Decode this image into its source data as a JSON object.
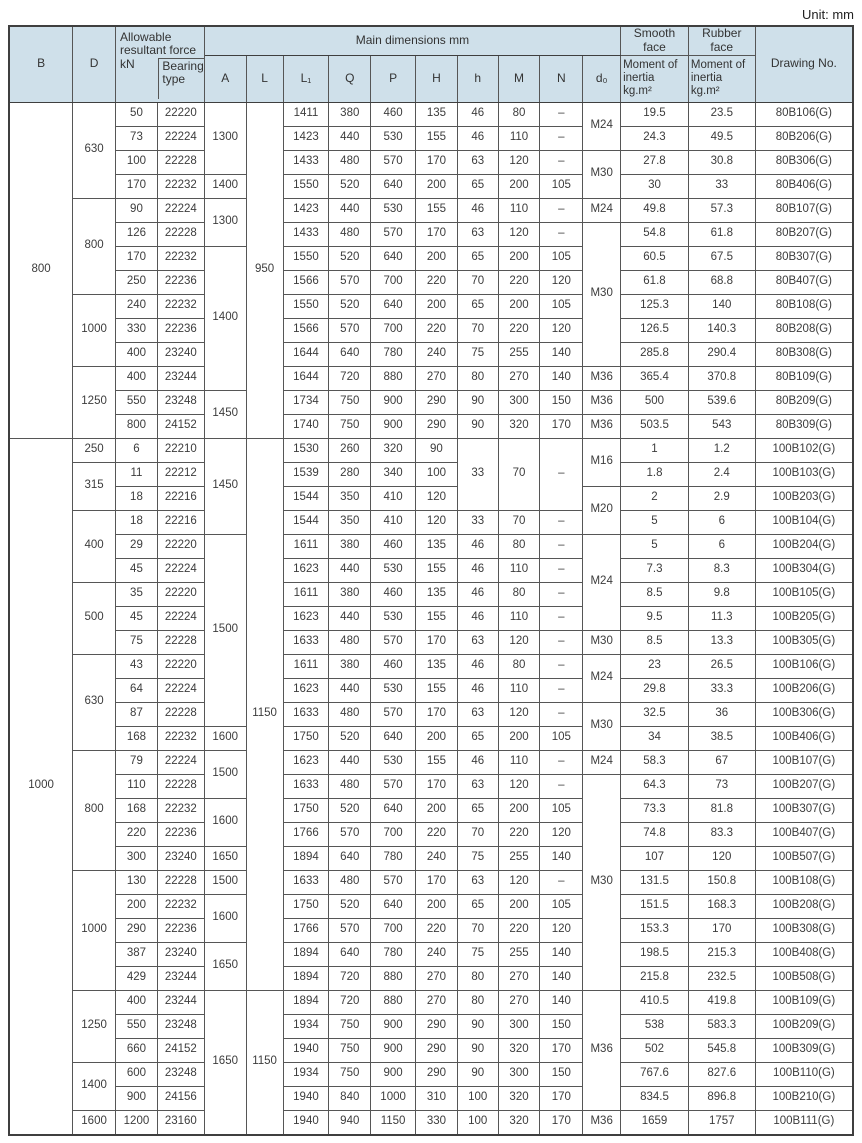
{
  "meta": {
    "unit_label": "Unit: mm"
  },
  "header": {
    "b": "B",
    "d": "D",
    "force_group": "Allowable resultant force",
    "kn": "kN",
    "bearing": "Bearing type",
    "main_dims": "Main dimensions mm",
    "dims": [
      "A",
      "L",
      "L₁",
      "Q",
      "P",
      "H",
      "h",
      "M",
      "N",
      "d₀"
    ],
    "smooth_face": "Smooth face",
    "rubber_face": "Rubber face",
    "smooth_moi": "Moment of inertia kg.m²",
    "rubber_moi": "Moment of inertia kg.m²",
    "drawing": "Drawing No."
  },
  "columns_order": [
    "B",
    "D",
    "kN",
    "Bearing type",
    "A",
    "L",
    "L1",
    "Q",
    "P",
    "H",
    "h",
    "M",
    "N",
    "d0",
    "Smooth face moment of inertia",
    "Rubber face moment of inertia",
    "Drawing No."
  ],
  "sections": [
    {
      "b": "800",
      "rows": [
        [
          [
            "800",
            14
          ],
          [
            "630",
            4
          ],
          "50",
          "22220",
          [
            "1300",
            3
          ],
          [
            "950",
            14
          ],
          "1411",
          "380",
          "460",
          "135",
          "46",
          "80",
          "–",
          [
            "M24",
            2
          ],
          "19.5",
          "23.5",
          "80B106(G)"
        ],
        [
          "73",
          "22224",
          "1423",
          "440",
          "530",
          "155",
          "46",
          "110",
          "–",
          "24.3",
          "49.5",
          "80B206(G)"
        ],
        [
          "100",
          "22228",
          "1433",
          "480",
          "570",
          "170",
          "63",
          "120",
          "–",
          [
            "M30",
            2
          ],
          "27.8",
          "30.8",
          "80B306(G)"
        ],
        [
          "170",
          "22232",
          "1400",
          "1550",
          "520",
          "640",
          "200",
          "65",
          "200",
          "105",
          "30",
          "33",
          "80B406(G)"
        ],
        [
          [
            "800",
            4
          ],
          "90",
          "22224",
          [
            "1300",
            2
          ],
          "1423",
          "440",
          "530",
          "155",
          "46",
          "110",
          "–",
          "M24",
          "49.8",
          "57.3",
          "80B107(G)"
        ],
        [
          "126",
          "22228",
          "1433",
          "480",
          "570",
          "170",
          "63",
          "120",
          "–",
          [
            "M30",
            6
          ],
          "54.8",
          "61.8",
          "80B207(G)"
        ],
        [
          "170",
          "22232",
          [
            "1400",
            6
          ],
          "1550",
          "520",
          "640",
          "200",
          "65",
          "200",
          "105",
          "60.5",
          "67.5",
          "80B307(G)"
        ],
        [
          "250",
          "22236",
          "1566",
          "570",
          "700",
          "220",
          "70",
          "220",
          "120",
          "61.8",
          "68.8",
          "80B407(G)"
        ],
        [
          [
            "1000",
            3
          ],
          "240",
          "22232",
          "1550",
          "520",
          "640",
          "200",
          "65",
          "200",
          "105",
          "125.3",
          "140",
          "80B108(G)"
        ],
        [
          "330",
          "22236",
          "1566",
          "570",
          "700",
          "220",
          "70",
          "220",
          "120",
          "126.5",
          "140.3",
          "80B208(G)"
        ],
        [
          "400",
          "23240",
          "1644",
          "640",
          "780",
          "240",
          "75",
          "255",
          "140",
          "285.8",
          "290.4",
          "80B308(G)"
        ],
        [
          [
            "1250",
            3
          ],
          "400",
          "23244",
          "1644",
          "720",
          "880",
          "270",
          "80",
          "270",
          "140",
          "M36",
          "365.4",
          "370.8",
          "80B109(G)"
        ],
        [
          "550",
          "23248",
          [
            "1450",
            2
          ],
          "1734",
          "750",
          "900",
          "290",
          "90",
          "300",
          "150",
          "M36",
          "500",
          "539.6",
          "80B209(G)"
        ],
        [
          "800",
          "24152",
          "1740",
          "750",
          "900",
          "290",
          "90",
          "320",
          "170",
          "M36",
          "503.5",
          "543",
          "80B309(G)"
        ]
      ]
    },
    {
      "b": "1000",
      "rows": [
        [
          [
            "1000",
            29
          ],
          "250",
          "6",
          "22210",
          [
            "1450",
            4
          ],
          [
            "1150",
            23
          ],
          "1530",
          "260",
          "320",
          "90",
          [
            "33",
            3
          ],
          [
            "70",
            3
          ],
          [
            "–",
            3
          ],
          [
            "M16",
            2
          ],
          "1",
          "1.2",
          "100B102(G)"
        ],
        [
          [
            "315",
            2
          ],
          "11",
          "22212",
          "1539",
          "280",
          "340",
          "100",
          "1.8",
          "2.4",
          "100B103(G)"
        ],
        [
          "18",
          "22216",
          "1544",
          "350",
          "410",
          "120",
          [
            "M20",
            2
          ],
          "2",
          "2.9",
          "100B203(G)"
        ],
        [
          [
            "400",
            3
          ],
          "18",
          "22216",
          "1544",
          "350",
          "410",
          "120",
          "33",
          "70",
          "–",
          "5",
          "6",
          "100B104(G)"
        ],
        [
          "29",
          "22220",
          [
            "1500",
            8
          ],
          "1611",
          "380",
          "460",
          "135",
          "46",
          "80",
          "–",
          [
            "M24",
            4
          ],
          "5",
          "6",
          "100B204(G)"
        ],
        [
          "45",
          "22224",
          "1623",
          "440",
          "530",
          "155",
          "46",
          "110",
          "–",
          "7.3",
          "8.3",
          "100B304(G)"
        ],
        [
          [
            "500",
            3
          ],
          "35",
          "22220",
          "1611",
          "380",
          "460",
          "135",
          "46",
          "80",
          "–",
          "8.5",
          "9.8",
          "100B105(G)"
        ],
        [
          "45",
          "22224",
          "1623",
          "440",
          "530",
          "155",
          "46",
          "110",
          "–",
          "9.5",
          "11.3",
          "100B205(G)"
        ],
        [
          "75",
          "22228",
          "1633",
          "480",
          "570",
          "170",
          "63",
          "120",
          "–",
          "M30",
          "8.5",
          "13.3",
          "100B305(G)"
        ],
        [
          [
            "630",
            4
          ],
          "43",
          "22220",
          "1611",
          "380",
          "460",
          "135",
          "46",
          "80",
          "–",
          [
            "M24",
            2
          ],
          "23",
          "26.5",
          "100B106(G)"
        ],
        [
          "64",
          "22224",
          "1623",
          "440",
          "530",
          "155",
          "46",
          "110",
          "–",
          "29.8",
          "33.3",
          "100B206(G)"
        ],
        [
          "87",
          "22228",
          "1633",
          "480",
          "570",
          "170",
          "63",
          "120",
          "–",
          [
            "M30",
            2
          ],
          "32.5",
          "36",
          "100B306(G)"
        ],
        [
          "168",
          "22232",
          "1600",
          "1750",
          "520",
          "640",
          "200",
          "65",
          "200",
          "105",
          "34",
          "38.5",
          "100B406(G)"
        ],
        [
          [
            "800",
            5
          ],
          "79",
          "22224",
          [
            "1500",
            2
          ],
          "1623",
          "440",
          "530",
          "155",
          "46",
          "110",
          "–",
          "M24",
          "58.3",
          "67",
          "100B107(G)"
        ],
        [
          "110",
          "22228",
          "1633",
          "480",
          "570",
          "170",
          "63",
          "120",
          "–",
          [
            "M30",
            9
          ],
          "64.3",
          "73",
          "100B207(G)"
        ],
        [
          "168",
          "22232",
          [
            "1600",
            2
          ],
          "1750",
          "520",
          "640",
          "200",
          "65",
          "200",
          "105",
          "73.3",
          "81.8",
          "100B307(G)"
        ],
        [
          "220",
          "22236",
          "1766",
          "570",
          "700",
          "220",
          "70",
          "220",
          "120",
          "74.8",
          "83.3",
          "100B407(G)"
        ],
        [
          "300",
          "23240",
          "1650",
          "1894",
          "640",
          "780",
          "240",
          "75",
          "255",
          "140",
          "107",
          "120",
          "100B507(G)"
        ],
        [
          [
            "1000",
            5
          ],
          "130",
          "22228",
          "1500",
          "1633",
          "480",
          "570",
          "170",
          "63",
          "120",
          "–",
          "131.5",
          "150.8",
          "100B108(G)"
        ],
        [
          "200",
          "22232",
          [
            "1600",
            2
          ],
          "1750",
          "520",
          "640",
          "200",
          "65",
          "200",
          "105",
          "151.5",
          "168.3",
          "100B208(G)"
        ],
        [
          "290",
          "22236",
          "1766",
          "570",
          "700",
          "220",
          "70",
          "220",
          "120",
          "153.3",
          "170",
          "100B308(G)"
        ],
        [
          "387",
          "23240",
          [
            "1650",
            2
          ],
          "1894",
          "640",
          "780",
          "240",
          "75",
          "255",
          "140",
          "198.5",
          "215.3",
          "100B408(G)"
        ],
        [
          "429",
          "23244",
          "1894",
          "720",
          "880",
          "270",
          "80",
          "270",
          "140",
          "215.8",
          "232.5",
          "100B508(G)"
        ],
        [
          [
            "1250",
            3
          ],
          "400",
          "23244",
          [
            "1650",
            6
          ],
          [
            "1150",
            6
          ],
          "1894",
          "720",
          "880",
          "270",
          "80",
          "270",
          "140",
          [
            "M36",
            5
          ],
          "410.5",
          "419.8",
          "100B109(G)"
        ],
        [
          "550",
          "23248",
          "1934",
          "750",
          "900",
          "290",
          "90",
          "300",
          "150",
          "538",
          "583.3",
          "100B209(G)"
        ],
        [
          "660",
          "24152",
          "1940",
          "750",
          "900",
          "290",
          "90",
          "320",
          "170",
          "502",
          "545.8",
          "100B309(G)"
        ],
        [
          [
            "1400",
            2
          ],
          "600",
          "23248",
          "1934",
          "750",
          "900",
          "290",
          "90",
          "300",
          "150",
          "767.6",
          "827.6",
          "100B110(G)"
        ],
        [
          "900",
          "24156",
          "1940",
          "840",
          "1000",
          "310",
          "100",
          "320",
          "170",
          "834.5",
          "896.8",
          "100B210(G)"
        ],
        [
          "1600",
          "1200",
          "23160",
          "1940",
          "940",
          "1150",
          "330",
          "100",
          "320",
          "170",
          "M36",
          "1659",
          "1757",
          "100B111(G)"
        ]
      ]
    }
  ],
  "colors": {
    "header_bg": "#cfe0ea",
    "grid_line": "#565656",
    "outer_line": "#3f3f3f",
    "text": "#3c3c3c"
  }
}
